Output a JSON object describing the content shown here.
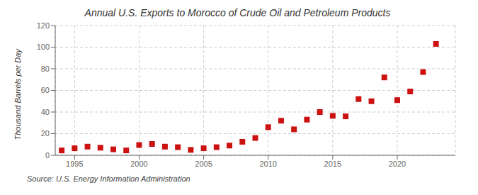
{
  "chart_data": {
    "type": "scatter",
    "title": "Annual U.S. Exports to Morocco of Crude Oil and Petroleum Products",
    "ylabel": "Thousand Barrels per Day",
    "annotations": [
      "Source: U.S. Energy Information Administration"
    ],
    "x": [
      1994,
      1995,
      1996,
      1997,
      1998,
      1999,
      2000,
      2001,
      2002,
      2003,
      2004,
      2005,
      2006,
      2007,
      2008,
      2009,
      2010,
      2011,
      2012,
      2013,
      2014,
      2015,
      2016,
      2017,
      2018,
      2019,
      2020,
      2021,
      2022,
      2023
    ],
    "values": [
      4.5,
      6.5,
      8.0,
      7.0,
      5.5,
      4.5,
      9.5,
      10.5,
      8.0,
      7.5,
      5.0,
      6.5,
      7.5,
      9.0,
      12.5,
      16.0,
      26.0,
      32.0,
      24.0,
      33.0,
      40.0,
      36.5,
      36.0,
      52.0,
      50.0,
      72.0,
      51.0,
      59.0,
      77.0,
      103.0
    ],
    "color": "#cc1111",
    "marker": "square",
    "xlim": [
      1993.5,
      2024.5
    ],
    "ylim": [
      0,
      120
    ],
    "xticks": [
      1995,
      2000,
      2005,
      2010,
      2015,
      2020
    ],
    "yticks": [
      0,
      20,
      40,
      60,
      80,
      100,
      120
    ],
    "grid": true
  }
}
